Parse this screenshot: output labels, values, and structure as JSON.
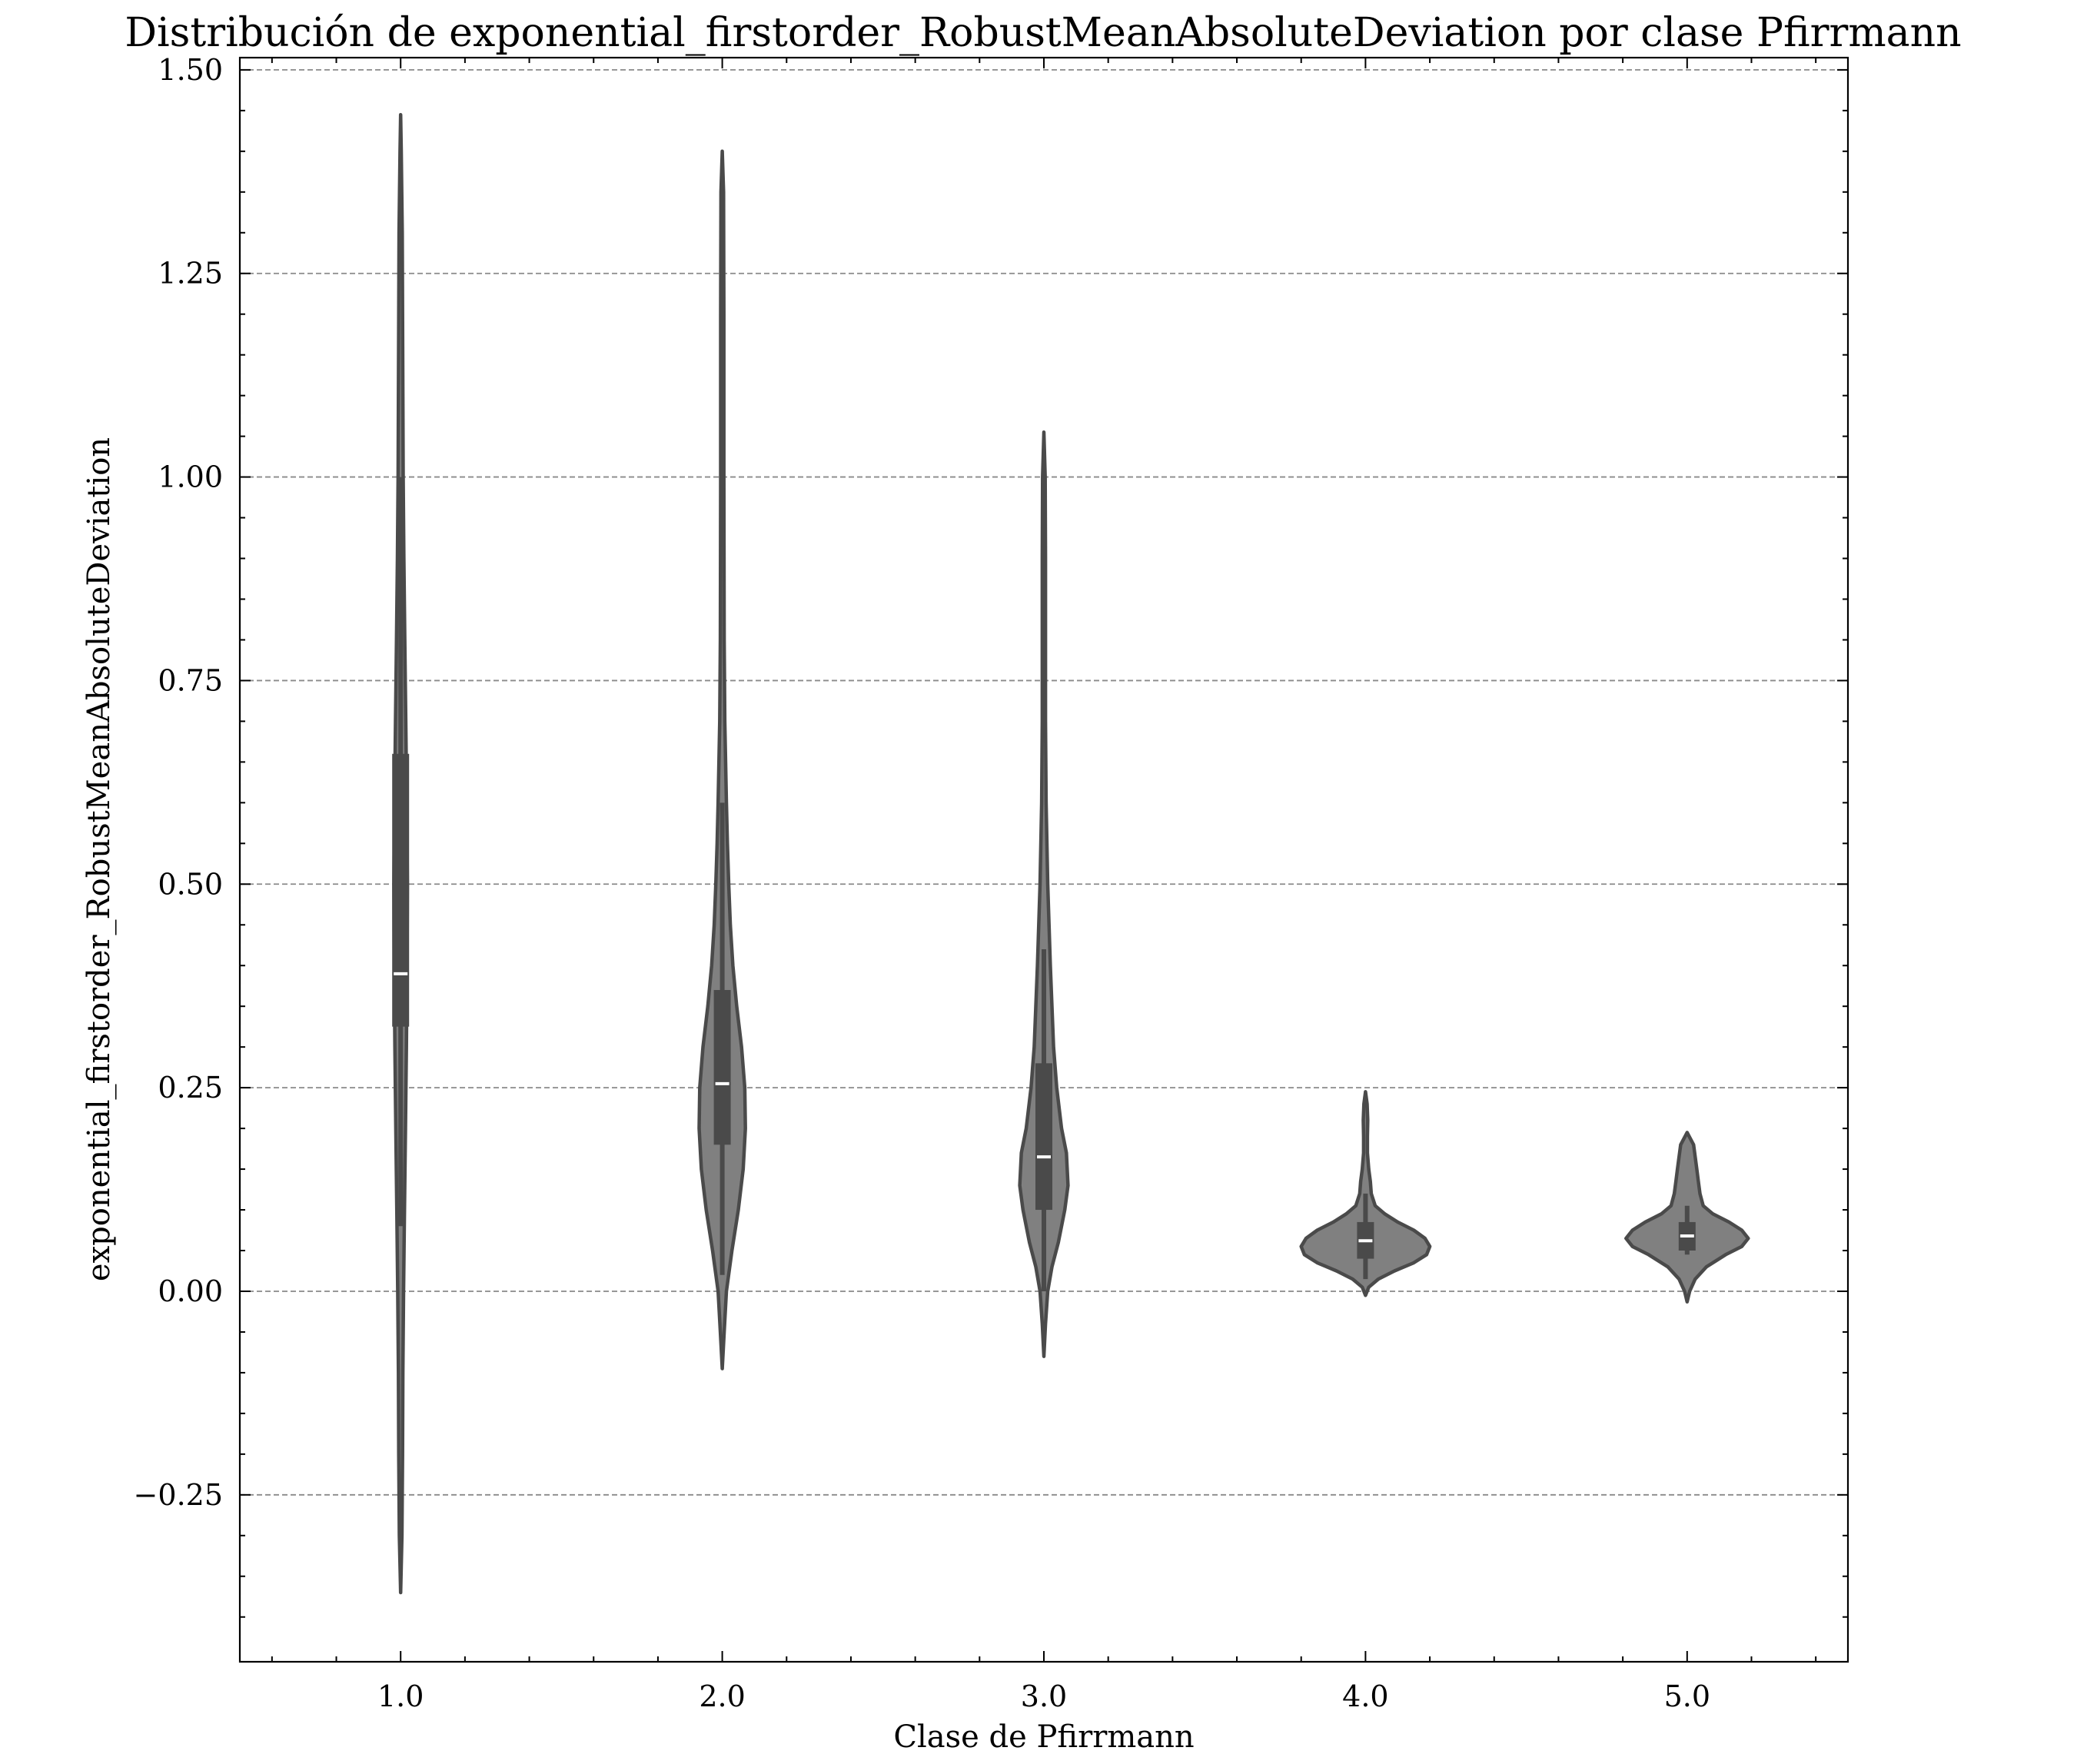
{
  "chart_data": {
    "type": "violin",
    "title": "Distribución de exponential_firstorder_RobustMeanAbsoluteDeviation por clase Pfirrmann",
    "xlabel": "Clase de Pfirrmann",
    "ylabel": "exponential_firstorder_RobustMeanAbsoluteDeviation",
    "xlim": [
      0.5,
      5.5
    ],
    "ylim": [
      -0.455,
      1.515
    ],
    "x_ticks": [
      1,
      2,
      3,
      4,
      5
    ],
    "x_tick_labels": [
      "1.0",
      "2.0",
      "3.0",
      "4.0",
      "5.0"
    ],
    "y_ticks": [
      -0.25,
      0.0,
      0.25,
      0.5,
      0.75,
      1.0,
      1.25,
      1.5
    ],
    "y_tick_labels": [
      "−0.25",
      "0.00",
      "0.25",
      "0.50",
      "0.75",
      "1.00",
      "1.25",
      "1.50"
    ],
    "grid": "horizontal dashed",
    "legend": "none",
    "colors": {
      "fill": "#808080",
      "edge": "#4a4a4a",
      "box": "#4a4a4a",
      "median": "#ffffff",
      "grid": "#8a8a8a"
    },
    "violins": [
      {
        "category": "1.0",
        "x": 1,
        "q1": 0.325,
        "median": 0.39,
        "q3": 0.66,
        "whisker_low": 0.08,
        "whisker_high": 1.0,
        "profile": [
          [
            -0.37,
            0.0
          ],
          [
            -0.3,
            0.004
          ],
          [
            -0.2,
            0.006
          ],
          [
            -0.1,
            0.007
          ],
          [
            0.0,
            0.009
          ],
          [
            0.1,
            0.012
          ],
          [
            0.2,
            0.015
          ],
          [
            0.3,
            0.018
          ],
          [
            0.4,
            0.02
          ],
          [
            0.5,
            0.021
          ],
          [
            0.6,
            0.019
          ],
          [
            0.7,
            0.016
          ],
          [
            0.8,
            0.013
          ],
          [
            0.9,
            0.01
          ],
          [
            1.0,
            0.008
          ],
          [
            1.1,
            0.007
          ],
          [
            1.2,
            0.006
          ],
          [
            1.3,
            0.005
          ],
          [
            1.4,
            0.002
          ],
          [
            1.445,
            0.0
          ]
        ]
      },
      {
        "category": "2.0",
        "x": 2,
        "q1": 0.18,
        "median": 0.255,
        "q3": 0.37,
        "whisker_low": 0.02,
        "whisker_high": 0.6,
        "profile": [
          [
            -0.095,
            0.0
          ],
          [
            -0.05,
            0.006
          ],
          [
            0.0,
            0.013
          ],
          [
            0.05,
            0.03
          ],
          [
            0.1,
            0.05
          ],
          [
            0.15,
            0.065
          ],
          [
            0.2,
            0.072
          ],
          [
            0.25,
            0.07
          ],
          [
            0.3,
            0.06
          ],
          [
            0.35,
            0.045
          ],
          [
            0.4,
            0.033
          ],
          [
            0.45,
            0.025
          ],
          [
            0.5,
            0.02
          ],
          [
            0.55,
            0.016
          ],
          [
            0.6,
            0.013
          ],
          [
            0.7,
            0.008
          ],
          [
            0.8,
            0.006
          ],
          [
            1.0,
            0.005
          ],
          [
            1.2,
            0.005
          ],
          [
            1.35,
            0.004
          ],
          [
            1.4,
            0.0
          ]
        ]
      },
      {
        "category": "3.0",
        "x": 3,
        "q1": 0.1,
        "median": 0.165,
        "q3": 0.28,
        "whisker_low": 0.0,
        "whisker_high": 0.42,
        "profile": [
          [
            -0.08,
            0.0
          ],
          [
            -0.04,
            0.005
          ],
          [
            0.0,
            0.012
          ],
          [
            0.03,
            0.025
          ],
          [
            0.06,
            0.045
          ],
          [
            0.1,
            0.065
          ],
          [
            0.13,
            0.075
          ],
          [
            0.17,
            0.07
          ],
          [
            0.2,
            0.055
          ],
          [
            0.25,
            0.04
          ],
          [
            0.3,
            0.03
          ],
          [
            0.35,
            0.025
          ],
          [
            0.4,
            0.02
          ],
          [
            0.45,
            0.016
          ],
          [
            0.5,
            0.012
          ],
          [
            0.6,
            0.007
          ],
          [
            0.7,
            0.005
          ],
          [
            0.9,
            0.005
          ],
          [
            1.0,
            0.004
          ],
          [
            1.055,
            0.0
          ]
        ]
      },
      {
        "category": "4.0",
        "x": 4,
        "q1": 0.04,
        "median": 0.062,
        "q3": 0.085,
        "whisker_low": 0.015,
        "whisker_high": 0.12,
        "profile": [
          [
            -0.005,
            0.0
          ],
          [
            0.005,
            0.01
          ],
          [
            0.015,
            0.04
          ],
          [
            0.025,
            0.09
          ],
          [
            0.035,
            0.15
          ],
          [
            0.045,
            0.19
          ],
          [
            0.055,
            0.2
          ],
          [
            0.065,
            0.185
          ],
          [
            0.075,
            0.15
          ],
          [
            0.085,
            0.1
          ],
          [
            0.095,
            0.06
          ],
          [
            0.105,
            0.03
          ],
          [
            0.12,
            0.018
          ],
          [
            0.135,
            0.015
          ],
          [
            0.15,
            0.01
          ],
          [
            0.17,
            0.006
          ],
          [
            0.19,
            0.006
          ],
          [
            0.21,
            0.007
          ],
          [
            0.23,
            0.005
          ],
          [
            0.245,
            0.0
          ]
        ]
      },
      {
        "category": "5.0",
        "x": 5,
        "q1": 0.05,
        "median": 0.068,
        "q3": 0.085,
        "whisker_low": 0.045,
        "whisker_high": 0.105,
        "profile": [
          [
            -0.013,
            0.0
          ],
          [
            0.0,
            0.008
          ],
          [
            0.015,
            0.025
          ],
          [
            0.03,
            0.06
          ],
          [
            0.045,
            0.12
          ],
          [
            0.055,
            0.17
          ],
          [
            0.065,
            0.19
          ],
          [
            0.075,
            0.17
          ],
          [
            0.085,
            0.13
          ],
          [
            0.095,
            0.08
          ],
          [
            0.105,
            0.05
          ],
          [
            0.12,
            0.04
          ],
          [
            0.135,
            0.035
          ],
          [
            0.15,
            0.03
          ],
          [
            0.165,
            0.025
          ],
          [
            0.18,
            0.02
          ],
          [
            0.195,
            0.0
          ]
        ]
      }
    ]
  }
}
